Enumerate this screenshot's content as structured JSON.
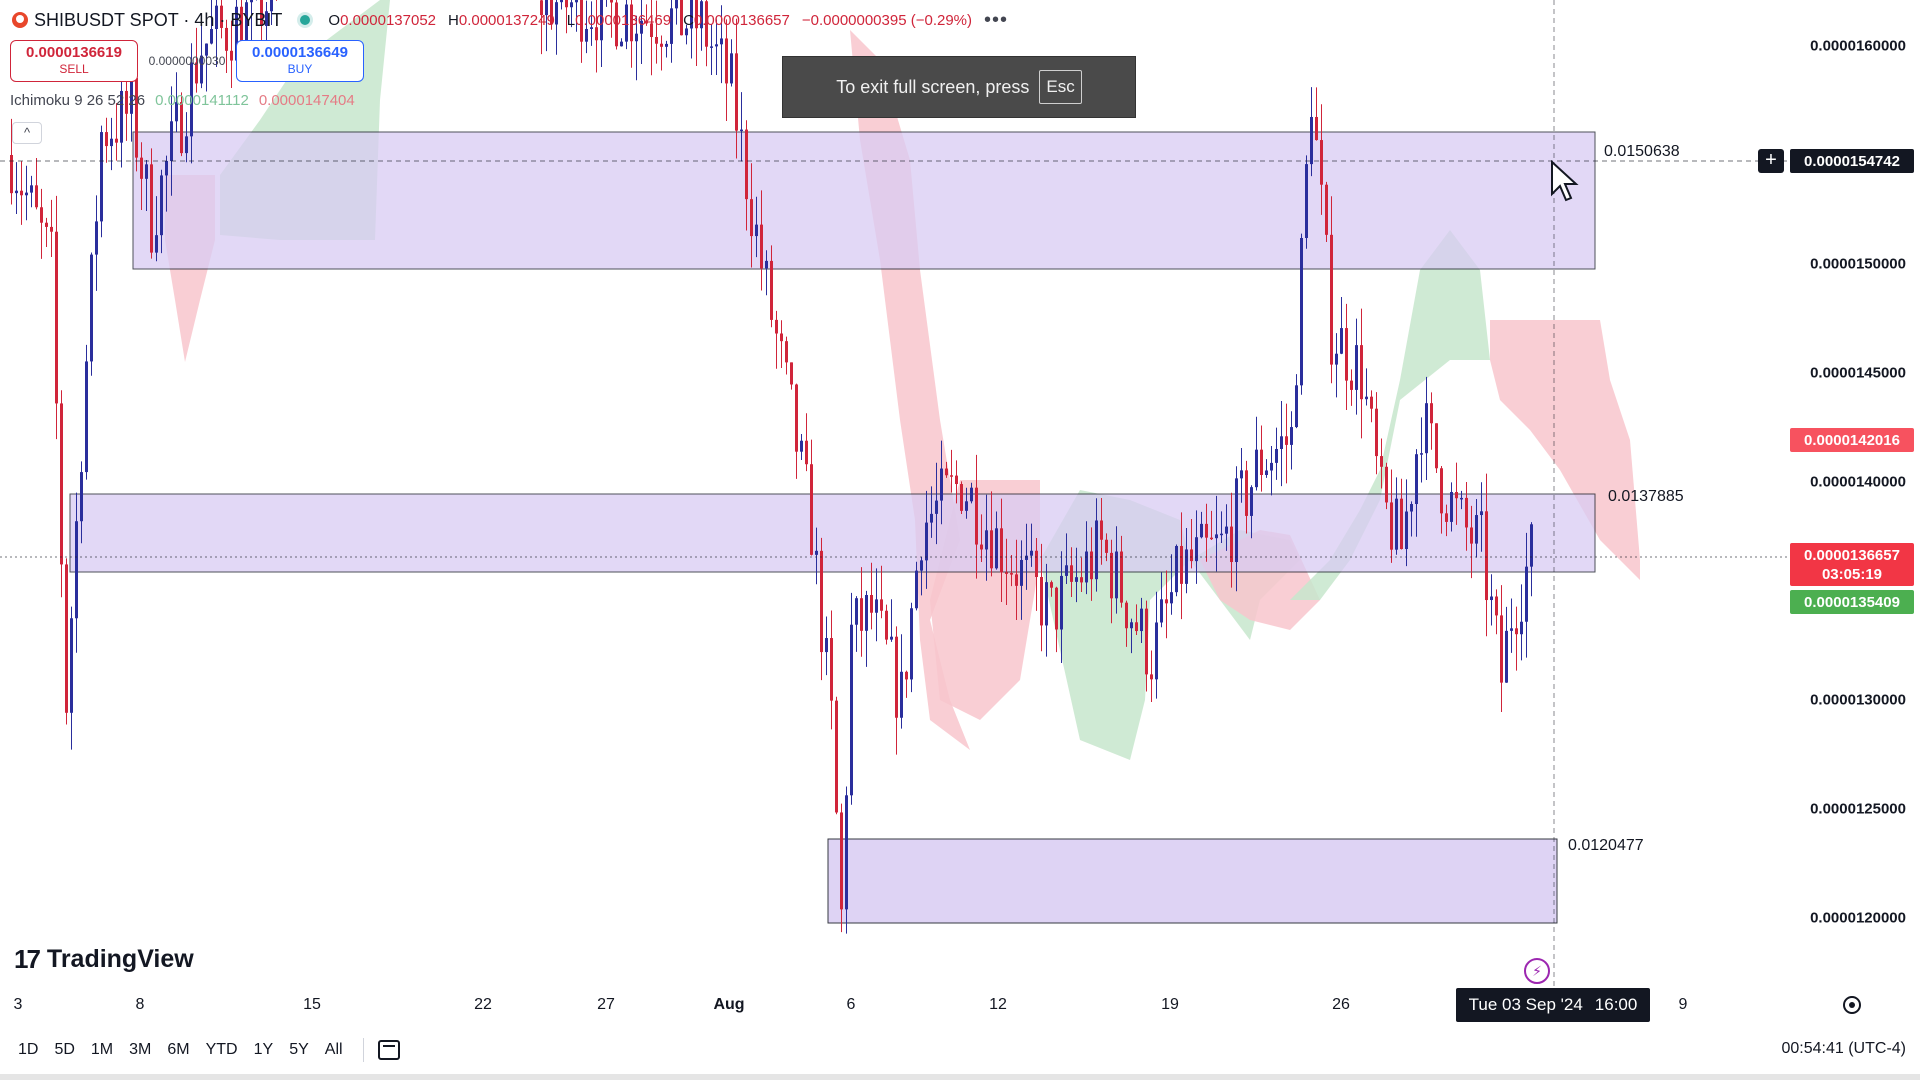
{
  "header": {
    "symbol": "SHIBUSDT SPOT · 4h · BYBIT",
    "ohlc": [
      {
        "k": "O",
        "v": "0.0000137052"
      },
      {
        "k": "H",
        "v": "0.0000137249"
      },
      {
        "k": "L",
        "v": "0.0000136469"
      },
      {
        "k": "C",
        "v": "0.0000136657"
      },
      {
        "k": "",
        "v": "−0.0000000395 (−0.29%)"
      }
    ],
    "more": "•••"
  },
  "trade": {
    "sell_price": "0.0000136619",
    "sell_label": "SELL",
    "spread": "0.0000000030",
    "buy_price": "0.0000136649",
    "buy_label": "BUY"
  },
  "indicator": {
    "name": "Ichimoku 9 26 52 26",
    "value1": "0.0000141112",
    "value2": "0.0000147404",
    "collapse_glyph": "^"
  },
  "fullscreen_toast": {
    "text": "To exit full screen, press",
    "key": "Esc"
  },
  "box_labels": {
    "top": "0.0150638",
    "middle": "0.0137885",
    "bottom": "0.0120477"
  },
  "price_axis": {
    "ticks": [
      {
        "label": "0.0000160000",
        "value": 16.0
      },
      {
        "label": "0.0000150000",
        "value": 15.0
      },
      {
        "label": "0.0000145000",
        "value": 14.5
      },
      {
        "label": "0.0000140000",
        "value": 14.0
      },
      {
        "label": "0.0000130000",
        "value": 13.0
      },
      {
        "label": "0.0000125000",
        "value": 12.5
      },
      {
        "label": "0.0000120000",
        "value": 12.0
      }
    ],
    "crosshair_price": "0.0000154742",
    "ichimoku_tag": "0.0000142016",
    "last_price": "0.0000136657",
    "countdown": "03:05:19",
    "green_tag": "0.0000135409"
  },
  "time_axis": {
    "ticks": [
      {
        "label": "3",
        "bold": false
      },
      {
        "label": "8",
        "bold": false
      },
      {
        "label": "15",
        "bold": false
      },
      {
        "label": "22",
        "bold": false
      },
      {
        "label": "27",
        "bold": false
      },
      {
        "label": "Aug",
        "bold": true
      },
      {
        "label": "6",
        "bold": false
      },
      {
        "label": "12",
        "bold": false
      },
      {
        "label": "19",
        "bold": false
      },
      {
        "label": "26",
        "bold": false
      },
      {
        "label": "9",
        "bold": false
      }
    ],
    "crosshair_date": "Tue 03 Sep '24",
    "crosshair_time": "16:00"
  },
  "bottom_toolbar": {
    "ranges": [
      "1D",
      "5D",
      "1M",
      "3M",
      "6M",
      "YTD",
      "1Y",
      "5Y",
      "All"
    ],
    "clock": "00:54:41 (UTC-4)"
  },
  "branding": {
    "logo_mark": "17",
    "name": "TradingView"
  },
  "colors": {
    "bull": "#2a2e9c",
    "bear": "#d0253a",
    "box_fill": "#d9ccf3",
    "cloud_bull": "#c7e6cc",
    "cloud_bear": "#f8c6cc",
    "accent": "#2962ff"
  },
  "icons": [
    "bybit-logo-icon",
    "live-status-icon",
    "more-icon",
    "collapse-icon",
    "crosshair-plus-icon",
    "settings-gear-icon",
    "calendar-range-icon",
    "lightning-icon",
    "cursor-icon"
  ]
}
